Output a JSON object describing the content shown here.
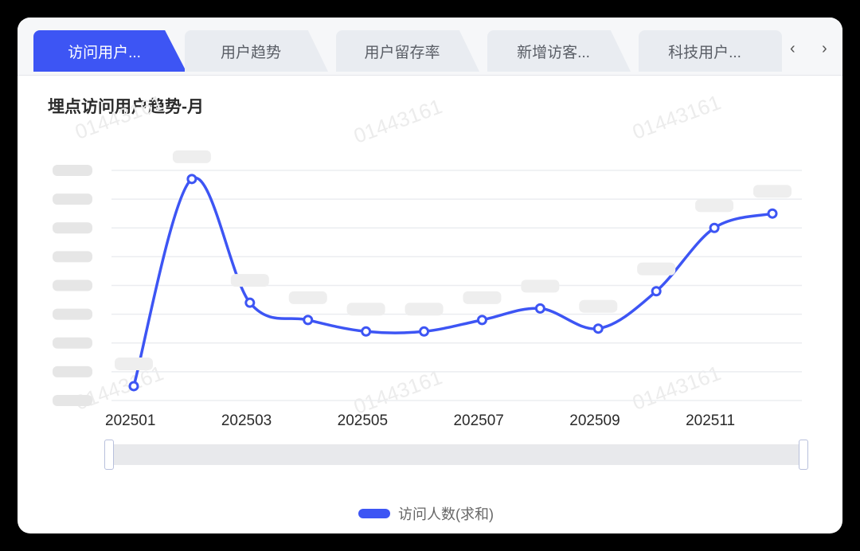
{
  "tabs": [
    {
      "label": "访问用户...",
      "active": true
    },
    {
      "label": "用户趋势",
      "active": false
    },
    {
      "label": "用户留存率",
      "active": false
    },
    {
      "label": "新增访客...",
      "active": false
    },
    {
      "label": "科技用户...",
      "active": false
    }
  ],
  "nav": {
    "prev": "‹",
    "next": "›"
  },
  "chart_title": "埋点访问用户趋势-月",
  "watermark": "01443161",
  "legend": {
    "label": "访问人数(求和)",
    "color": "#3d55f4"
  },
  "chart_data": {
    "type": "line",
    "title": "埋点访问用户趋势-月",
    "x": [
      "202501",
      "202502",
      "202503",
      "202504",
      "202505",
      "202506",
      "202507",
      "202508",
      "202509",
      "202510",
      "202511",
      "202512"
    ],
    "xtick_labels": [
      "202501",
      "202503",
      "202505",
      "202507",
      "202509",
      "202511"
    ],
    "series": [
      {
        "name": "访问人数(求和)",
        "values": [
          0.5,
          7.7,
          3.4,
          2.8,
          2.4,
          2.4,
          2.8,
          3.2,
          2.5,
          3.8,
          6.0,
          6.5
        ]
      }
    ],
    "ylabel": "",
    "xlabel": "",
    "ylim": [
      0,
      8
    ],
    "yticks_note": "y-axis tick labels and data labels are blurred/obscured in the screenshot; values estimated in gridline units (0–8)",
    "grid": true,
    "legend_position": "bottom",
    "smooth": true,
    "color": "#3d55f4"
  }
}
